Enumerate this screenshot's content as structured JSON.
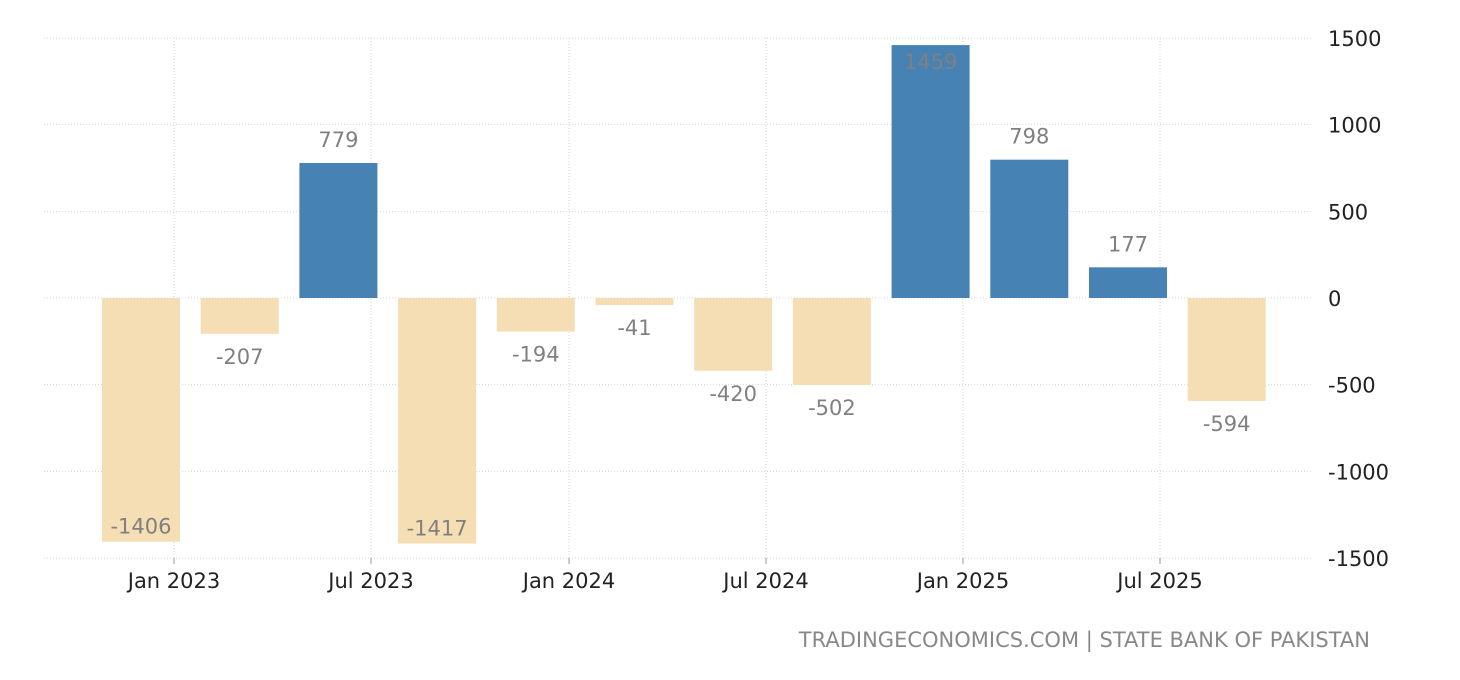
{
  "source_text": "TRADINGECONOMICS.COM | STATE BANK OF PAKISTAN",
  "chart_data": {
    "type": "bar",
    "title": "",
    "xlabel": "",
    "ylabel": "",
    "ylim": [
      -1500,
      1500
    ],
    "yticks": [
      1500,
      1000,
      500,
      0,
      -500,
      -1000,
      -1500
    ],
    "grid": true,
    "legend": "none",
    "x_tick_labels": [
      "Jan 2023",
      "Jul 2023",
      "Jan 2024",
      "Jul 2024",
      "Jan 2025",
      "Jul 2025"
    ],
    "colors": {
      "positive": "#4682b4",
      "negative": "#f5deb3"
    },
    "values": [
      -1406,
      -207,
      779,
      -1417,
      -194,
      -41,
      -420,
      -502,
      1459,
      798,
      177,
      -594
    ]
  }
}
